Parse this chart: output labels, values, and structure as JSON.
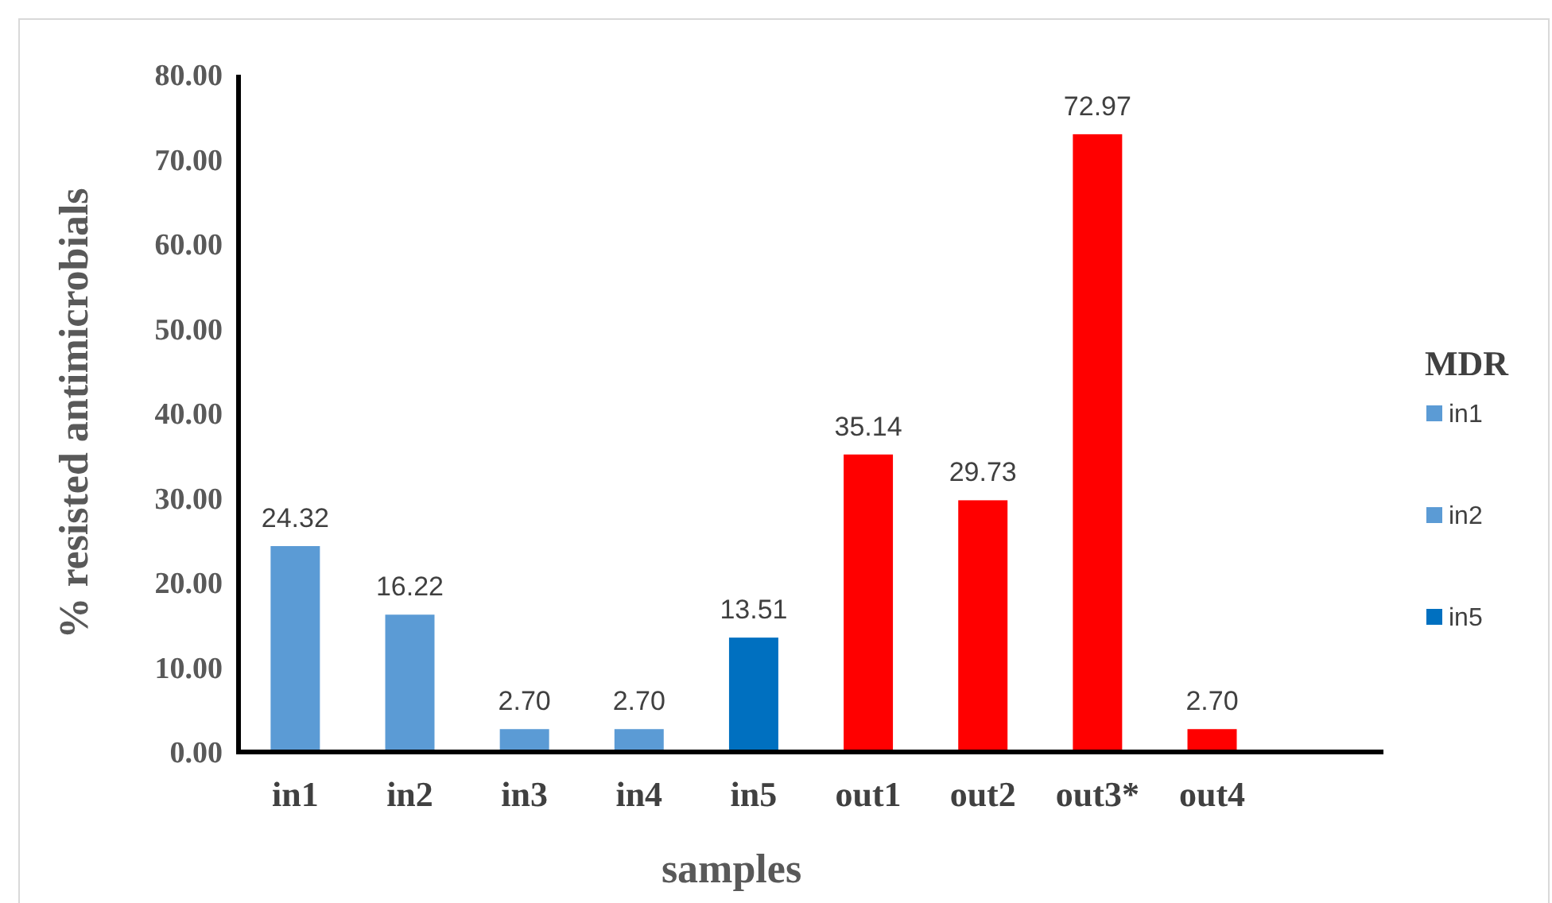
{
  "chart_data": {
    "type": "bar",
    "xlabel": "samples",
    "ylabel": "% resisted antimicrobials",
    "legend_title": "MDR",
    "legend": "right",
    "grid": false,
    "categories": [
      "in1",
      "in2",
      "in3",
      "in4",
      "in5",
      "out1",
      "out2",
      "out3*",
      "out4",
      null
    ],
    "series": [
      {
        "name": "in1",
        "color": "#5b9bd5",
        "values": [
          24.32,
          null,
          null,
          null,
          null,
          null,
          null,
          null,
          null,
          null
        ],
        "value_labels": [
          "24.32",
          null,
          null,
          null,
          null,
          null,
          null,
          null,
          null,
          null
        ]
      },
      {
        "name": "in2",
        "color": "#5b9bd5",
        "values": [
          null,
          16.22,
          2.7,
          2.7,
          null,
          null,
          null,
          null,
          null,
          null
        ],
        "value_labels": [
          null,
          "16.22",
          "2.70",
          "2.70",
          null,
          null,
          null,
          null,
          null,
          null
        ]
      },
      {
        "name": "in5",
        "color": "#0070c0",
        "values": [
          null,
          null,
          null,
          null,
          13.51,
          null,
          null,
          null,
          null,
          null
        ],
        "value_labels": [
          null,
          null,
          null,
          null,
          "13.51",
          null,
          null,
          null,
          null,
          null
        ]
      },
      {
        "color": "#ff0000",
        "values": [
          null,
          null,
          null,
          null,
          null,
          35.14,
          29.73,
          72.97,
          2.7,
          null
        ],
        "value_labels": [
          null,
          null,
          null,
          null,
          null,
          "35.14",
          "29.73",
          "72.97",
          "2.70",
          null
        ]
      }
    ],
    "ylim": [
      0,
      80
    ],
    "yticks": [
      {
        "value": 0,
        "label": "0.00"
      },
      {
        "value": 10,
        "label": "10.00"
      },
      {
        "value": 20,
        "label": "20.00"
      },
      {
        "value": 30,
        "label": "30.00"
      },
      {
        "value": 40,
        "label": "40.00"
      },
      {
        "value": 50,
        "label": "50.00"
      },
      {
        "value": 60,
        "label": "60.00"
      },
      {
        "value": 70,
        "label": "70.00"
      },
      {
        "value": 80,
        "label": "80.00"
      }
    ]
  }
}
